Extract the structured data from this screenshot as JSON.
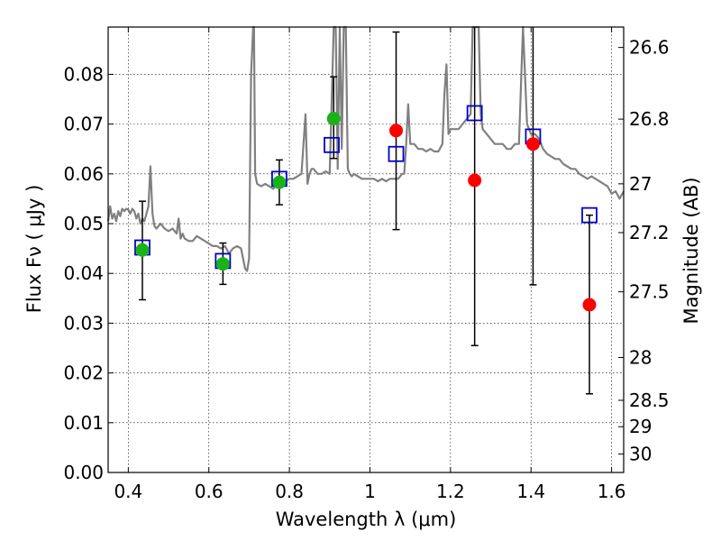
{
  "chart_data": {
    "type": "scatter",
    "xlabel": "Wavelength  λ (μm)",
    "ylabel": "Flux  Fν  ( μJy )",
    "ylabel_right": "Magnitude (AB)",
    "xlim": [
      0.35,
      1.63
    ],
    "ylim": [
      0.0,
      0.0895
    ],
    "grid": true,
    "x_ticks": [
      {
        "v": 0.4,
        "label": "0.4"
      },
      {
        "v": 0.6,
        "label": "0.6"
      },
      {
        "v": 0.8,
        "label": "0.8"
      },
      {
        "v": 1.0,
        "label": "1"
      },
      {
        "v": 1.2,
        "label": "1.2"
      },
      {
        "v": 1.4,
        "label": "1.4"
      },
      {
        "v": 1.6,
        "label": "1.6"
      }
    ],
    "y_ticks": [
      {
        "v": 0.0,
        "label": "0.00"
      },
      {
        "v": 0.01,
        "label": "0.01"
      },
      {
        "v": 0.02,
        "label": "0.02"
      },
      {
        "v": 0.03,
        "label": "0.03"
      },
      {
        "v": 0.04,
        "label": "0.04"
      },
      {
        "v": 0.05,
        "label": "0.05"
      },
      {
        "v": 0.06,
        "label": "0.06"
      },
      {
        "v": 0.07,
        "label": "0.07"
      },
      {
        "v": 0.08,
        "label": "0.08"
      }
    ],
    "mag_ticks": [
      {
        "label": "26.6",
        "flux": 0.0854
      },
      {
        "label": "26.8",
        "flux": 0.071
      },
      {
        "label": "27",
        "flux": 0.058
      },
      {
        "label": "27.2",
        "flux": 0.0482
      },
      {
        "label": "27.5",
        "flux": 0.0363
      },
      {
        "label": "28",
        "flux": 0.0231
      },
      {
        "label": "28.5",
        "flux": 0.0145
      },
      {
        "label": "29",
        "flux": 0.0092
      },
      {
        "label": "30",
        "flux": 0.0037
      }
    ],
    "series": [
      {
        "kind": "model_spectrum",
        "color": "#808080",
        "x": [
          0.35,
          0.355,
          0.36,
          0.365,
          0.37,
          0.375,
          0.38,
          0.385,
          0.39,
          0.395,
          0.4,
          0.405,
          0.41,
          0.415,
          0.42,
          0.425,
          0.43,
          0.435,
          0.44,
          0.445,
          0.45,
          0.455,
          0.46,
          0.465,
          0.47,
          0.48,
          0.49,
          0.5,
          0.51,
          0.52,
          0.525,
          0.53,
          0.535,
          0.54,
          0.55,
          0.56,
          0.57,
          0.58,
          0.59,
          0.6,
          0.61,
          0.62,
          0.63,
          0.64,
          0.65,
          0.66,
          0.67,
          0.68,
          0.69,
          0.695,
          0.7,
          0.705,
          0.71,
          0.712,
          0.715,
          0.72,
          0.73,
          0.74,
          0.75,
          0.76,
          0.77,
          0.78,
          0.79,
          0.8,
          0.81,
          0.82,
          0.83,
          0.84,
          0.845,
          0.85,
          0.855,
          0.86,
          0.87,
          0.88,
          0.89,
          0.9,
          0.91,
          0.915,
          0.92,
          0.925,
          0.93,
          0.935,
          0.94,
          0.945,
          0.95,
          0.955,
          0.96,
          0.97,
          0.98,
          0.99,
          1.0,
          1.01,
          1.02,
          1.03,
          1.04,
          1.05,
          1.06,
          1.07,
          1.08,
          1.085,
          1.09,
          1.095,
          1.1,
          1.11,
          1.12,
          1.13,
          1.14,
          1.15,
          1.16,
          1.17,
          1.18,
          1.185,
          1.19,
          1.195,
          1.2,
          1.21,
          1.22,
          1.23,
          1.24,
          1.25,
          1.255,
          1.26,
          1.265,
          1.27,
          1.275,
          1.28,
          1.29,
          1.3,
          1.31,
          1.32,
          1.33,
          1.34,
          1.35,
          1.36,
          1.37,
          1.38,
          1.39,
          1.4,
          1.41,
          1.42,
          1.43,
          1.44,
          1.45,
          1.46,
          1.47,
          1.48,
          1.49,
          1.5,
          1.51,
          1.52,
          1.53,
          1.54,
          1.55,
          1.56,
          1.57,
          1.58,
          1.59,
          1.6,
          1.61,
          1.62,
          1.63
        ],
        "y": [
          0.0505,
          0.0535,
          0.051,
          0.052,
          0.0505,
          0.0525,
          0.0515,
          0.053,
          0.0525,
          0.053,
          0.0528,
          0.052,
          0.053,
          0.0525,
          0.051,
          0.052,
          0.05,
          0.051,
          0.0505,
          0.052,
          0.0535,
          0.0615,
          0.052,
          0.0495,
          0.049,
          0.05,
          0.049,
          0.0485,
          0.049,
          0.048,
          0.051,
          0.047,
          0.048,
          0.047,
          0.0465,
          0.0465,
          0.0475,
          0.047,
          0.0465,
          0.046,
          0.0455,
          0.0455,
          0.045,
          0.0455,
          0.044,
          0.045,
          0.0455,
          0.045,
          0.041,
          0.0405,
          0.043,
          0.08,
          0.0895,
          0.0895,
          0.06,
          0.058,
          0.0575,
          0.058,
          0.0575,
          0.057,
          0.058,
          0.058,
          0.0585,
          0.059,
          0.059,
          0.0595,
          0.06,
          0.072,
          0.058,
          0.06,
          0.061,
          0.061,
          0.06,
          0.06,
          0.0605,
          0.06,
          0.0895,
          0.0895,
          0.061,
          0.0895,
          0.065,
          0.0895,
          0.0895,
          0.061,
          0.06,
          0.0595,
          0.06,
          0.0595,
          0.059,
          0.059,
          0.059,
          0.059,
          0.0585,
          0.059,
          0.0585,
          0.059,
          0.059,
          0.059,
          0.06,
          0.06,
          0.066,
          0.074,
          0.066,
          0.066,
          0.065,
          0.065,
          0.0645,
          0.065,
          0.0645,
          0.0645,
          0.066,
          0.076,
          0.082,
          0.068,
          0.069,
          0.069,
          0.069,
          0.07,
          0.071,
          0.072,
          0.0895,
          0.0895,
          0.0895,
          0.0895,
          0.072,
          0.069,
          0.068,
          0.067,
          0.066,
          0.066,
          0.066,
          0.065,
          0.065,
          0.066,
          0.066,
          0.0895,
          0.07,
          0.068,
          0.068,
          0.067,
          0.065,
          0.064,
          0.0635,
          0.063,
          0.063,
          0.062,
          0.0615,
          0.061,
          0.061,
          0.06,
          0.0595,
          0.059,
          0.0595,
          0.059,
          0.0585,
          0.058,
          0.0575,
          0.056,
          0.0565,
          0.055,
          0.0565
        ]
      },
      {
        "kind": "model_photometry",
        "marker": "open-square",
        "color": "#0000cc",
        "x": [
          0.435,
          0.635,
          0.775,
          0.905,
          1.065,
          1.26,
          1.405,
          1.545
        ],
        "y": [
          0.0452,
          0.0425,
          0.059,
          0.0658,
          0.064,
          0.0722,
          0.0675,
          0.0517
        ]
      },
      {
        "kind": "detections",
        "marker": "filled-circle",
        "color": "#19b219",
        "x": [
          0.435,
          0.635,
          0.775,
          0.91
        ],
        "y": [
          0.0447,
          0.0419,
          0.0583,
          0.0711
        ],
        "err_low": [
          0.0347,
          0.0378,
          0.0538,
          0.0631
        ],
        "err_high": [
          0.0545,
          0.0461,
          0.0628,
          0.0795
        ]
      },
      {
        "kind": "upper_limits",
        "marker": "filled-circle",
        "color": "#ff0000",
        "x": [
          1.065,
          1.26,
          1.405,
          1.545
        ],
        "y": [
          0.0687,
          0.0587,
          0.066,
          0.0337
        ],
        "err_low": [
          0.0488,
          0.0255,
          0.0377,
          0.0158
        ],
        "err_high": [
          0.0885,
          0.0895,
          0.0895,
          0.0517
        ]
      }
    ]
  }
}
